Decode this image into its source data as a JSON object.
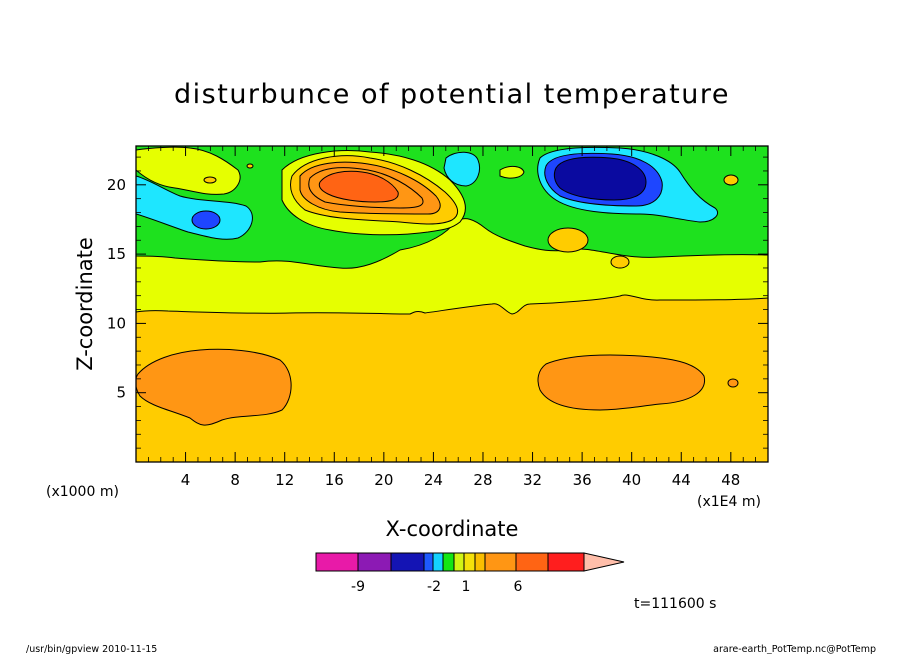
{
  "chart_data": {
    "type": "heatmap",
    "title": "disturbunce of potential temperature",
    "xlabel": "X-coordinate",
    "ylabel": "Z-coordinate",
    "x_unit_left": "(x1000 m)",
    "x_unit_right": "(x1E4 m)",
    "x_ticks": [
      4,
      8,
      12,
      16,
      20,
      24,
      28,
      32,
      36,
      40,
      44,
      48
    ],
    "y_ticks": [
      5,
      10,
      15,
      20
    ],
    "xlim": [
      0,
      51
    ],
    "ylim": [
      0,
      22.8
    ],
    "colorbar": {
      "labels": [
        {
          "text": "-9",
          "value": -9
        },
        {
          "text": "-2",
          "value": -2
        },
        {
          "text": "1",
          "value": 1
        },
        {
          "text": "6",
          "value": 6
        }
      ],
      "colors": [
        "#e81aa8",
        "#8c1ab4",
        "#1414b4",
        "#1e5aff",
        "#14d2ff",
        "#14e614",
        "#d2f514",
        "#f5e10a",
        "#fabe00",
        "#ff9614",
        "#ff6414",
        "#ff1e1e",
        "#ff7878",
        "#ffbeaa"
      ]
    },
    "time_label": "t=111600 s",
    "footer_left": "/usr/bin/gpview  2010-11-15",
    "footer_right": "arare-earth_PotTemp.nc@PotTemp",
    "colors": {
      "orange_dark": "#ff6414",
      "orange": "#ff9614",
      "gold": "#ffcc00",
      "yellow": "#ffe800",
      "lime": "#e6ff00",
      "green": "#1ee11e",
      "cyan": "#1ee6ff",
      "lightblue": "#14b4ff",
      "blue": "#1e46ff",
      "navy": "#0a0aa0"
    }
  }
}
